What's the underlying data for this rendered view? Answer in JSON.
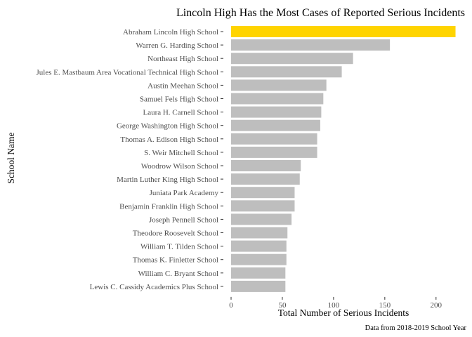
{
  "chart_data": {
    "type": "bar",
    "orientation": "horizontal",
    "title": "Lincoln High Has the Most Cases of Reported Serious Incidents",
    "xlabel": "Total Number of Serious Incidents",
    "ylabel": "School Name",
    "caption": "Data from 2018-2019 School Year",
    "xlim": [
      0,
      220
    ],
    "xticks": [
      0,
      50,
      100,
      150,
      200
    ],
    "grid": false,
    "highlight_color": "#FFD400",
    "bar_color": "#BEBEBE",
    "categories": [
      "Abraham Lincoln High School",
      "Warren G. Harding School",
      "Northeast High School",
      "Jules E. Mastbaum Area Vocational Technical High School",
      "Austin Meehan School",
      "Samuel Fels High School",
      "Laura H. Carnell School",
      "George Washington High School",
      "Thomas A. Edison High School",
      "S. Weir Mitchell School",
      "Woodrow Wilson School",
      "Martin Luther King High School",
      "Juniata Park Academy",
      "Benjamin Franklin High School",
      "Joseph Pennell School",
      "Theodore Roosevelt School",
      "William T. Tilden School",
      "Thomas K. Finletter School",
      "William C. Bryant School",
      "Lewis C. Cassidy Academics Plus School"
    ],
    "values": [
      219,
      155,
      119,
      108,
      93,
      90,
      88,
      87,
      84,
      84,
      68,
      67,
      62,
      62,
      59,
      55,
      54,
      54,
      53,
      53
    ],
    "highlighted": [
      "Abraham Lincoln High School"
    ]
  }
}
